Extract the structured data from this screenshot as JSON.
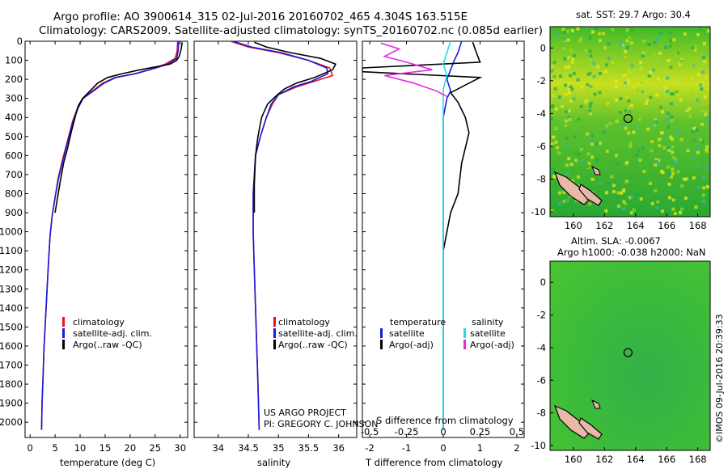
{
  "header": {
    "title_line1": "Argo profile: AO 3900614_315 02-Jul-2016 20160702_465 4.304S 163.515E",
    "title_line2": "Climatology: CARS2009. Satellite-adjusted climatology: synTS_20160702.nc (0.085d earlier)"
  },
  "colors": {
    "climatology": "#e8141e",
    "satellite": "#1a1adc",
    "argo": "#000000",
    "satellite_salinity": "#19e1e6",
    "argo_salinity": "#e628e6",
    "land": "#e8b8a8"
  },
  "depth_ticks": [
    0,
    100,
    200,
    300,
    400,
    500,
    600,
    700,
    800,
    900,
    1000,
    1100,
    1200,
    1300,
    1400,
    1500,
    1600,
    1700,
    1800,
    1900,
    2000
  ],
  "chart_data": [
    {
      "type": "line",
      "id": "temperature",
      "xlabel": "temperature (deg C)",
      "xlim": [
        -1,
        31.5
      ],
      "ylim": [
        2080,
        0
      ],
      "xticks": [
        0,
        5,
        10,
        15,
        20,
        25,
        30
      ],
      "legend": [
        "climatology",
        "satellite-adj. clim.",
        "Argo(..raw -QC)"
      ],
      "series": [
        {
          "name": "climatology",
          "color": "red",
          "points": [
            [
              29.5,
              0
            ],
            [
              29.4,
              50
            ],
            [
              29,
              90
            ],
            [
              27,
              120
            ],
            [
              25,
              140
            ],
            [
              21,
              170
            ],
            [
              17,
              190
            ],
            [
              14.5,
              220
            ],
            [
              12.5,
              260
            ],
            [
              10.5,
              300
            ],
            [
              9.5,
              350
            ],
            [
              8.5,
              420
            ],
            [
              7.5,
              520
            ],
            [
              6.5,
              620
            ],
            [
              5.6,
              720
            ],
            [
              5,
              820
            ],
            [
              4.4,
              920
            ],
            [
              4,
              1020
            ],
            [
              3.7,
              1150
            ],
            [
              3.4,
              1300
            ],
            [
              3.1,
              1450
            ],
            [
              2.8,
              1600
            ],
            [
              2.6,
              1750
            ],
            [
              2.4,
              1900
            ],
            [
              2.3,
              2040
            ]
          ]
        },
        {
          "name": "satellite-adj. clim.",
          "color": "blue",
          "points": [
            [
              29.7,
              0
            ],
            [
              29.6,
              50
            ],
            [
              29.3,
              90
            ],
            [
              27.5,
              120
            ],
            [
              25.2,
              140
            ],
            [
              21.2,
              170
            ],
            [
              17.2,
              190
            ],
            [
              14.8,
              220
            ],
            [
              12.7,
              260
            ],
            [
              10.6,
              300
            ],
            [
              9.6,
              350
            ],
            [
              8.6,
              420
            ],
            [
              7.6,
              520
            ],
            [
              6.6,
              620
            ],
            [
              5.7,
              720
            ],
            [
              5,
              820
            ],
            [
              4.4,
              920
            ],
            [
              4,
              1020
            ],
            [
              3.7,
              1150
            ],
            [
              3.4,
              1300
            ],
            [
              3.1,
              1450
            ],
            [
              2.8,
              1600
            ],
            [
              2.6,
              1750
            ],
            [
              2.4,
              1900
            ],
            [
              2.3,
              2040
            ]
          ]
        },
        {
          "name": "Argo(..raw -QC)",
          "color": "black",
          "points": [
            [
              30.4,
              5
            ],
            [
              30.2,
              40
            ],
            [
              29.8,
              80
            ],
            [
              29.3,
              100
            ],
            [
              28,
              120
            ],
            [
              26,
              130
            ],
            [
              22,
              150
            ],
            [
              18.5,
              170
            ],
            [
              15.5,
              190
            ],
            [
              13.5,
              220
            ],
            [
              12,
              260
            ],
            [
              10.5,
              300
            ],
            [
              9.6,
              340
            ],
            [
              9,
              400
            ],
            [
              8.2,
              480
            ],
            [
              7.5,
              560
            ],
            [
              6.7,
              640
            ],
            [
              6,
              740
            ],
            [
              5.5,
              820
            ],
            [
              5,
              900
            ]
          ]
        }
      ]
    },
    {
      "type": "line",
      "id": "salinity",
      "xlabel": "salinity",
      "xlim": [
        33.6,
        36.3
      ],
      "ylim": [
        2080,
        0
      ],
      "xticks": [
        34,
        34.5,
        35,
        35.5,
        36
      ],
      "legend": [
        "climatology",
        "satellite-adj. clim.",
        "Argo(..raw -QC)"
      ],
      "series": [
        {
          "name": "climatology",
          "color": "red",
          "points": [
            [
              34.2,
              0
            ],
            [
              34.5,
              30
            ],
            [
              35,
              60
            ],
            [
              35.5,
              100
            ],
            [
              35.85,
              140
            ],
            [
              35.9,
              180
            ],
            [
              35.6,
              210
            ],
            [
              35.3,
              240
            ],
            [
              35,
              280
            ],
            [
              34.9,
              330
            ],
            [
              34.8,
              400
            ],
            [
              34.7,
              500
            ],
            [
              34.62,
              600
            ],
            [
              34.58,
              800
            ],
            [
              34.58,
              1000
            ],
            [
              34.6,
              1200
            ],
            [
              34.62,
              1400
            ],
            [
              34.64,
              1600
            ],
            [
              34.66,
              1800
            ],
            [
              34.68,
              2040
            ]
          ]
        },
        {
          "name": "satellite-adj. clim.",
          "color": "blue",
          "points": [
            [
              34.25,
              0
            ],
            [
              34.55,
              30
            ],
            [
              35.05,
              60
            ],
            [
              35.5,
              100
            ],
            [
              35.8,
              140
            ],
            [
              35.82,
              170
            ],
            [
              35.55,
              210
            ],
            [
              35.25,
              240
            ],
            [
              35,
              280
            ],
            [
              34.88,
              330
            ],
            [
              34.8,
              400
            ],
            [
              34.7,
              500
            ],
            [
              34.62,
              600
            ],
            [
              34.58,
              800
            ],
            [
              34.58,
              1000
            ],
            [
              34.6,
              1200
            ],
            [
              34.62,
              1400
            ],
            [
              34.64,
              1600
            ],
            [
              34.66,
              1800
            ],
            [
              34.68,
              2040
            ]
          ]
        },
        {
          "name": "Argo(..raw -QC)",
          "color": "black",
          "points": [
            [
              34.6,
              5
            ],
            [
              34.8,
              30
            ],
            [
              35.2,
              60
            ],
            [
              35.7,
              90
            ],
            [
              35.95,
              120
            ],
            [
              35.9,
              150
            ],
            [
              35.6,
              190
            ],
            [
              35.3,
              220
            ],
            [
              35.1,
              250
            ],
            [
              34.95,
              290
            ],
            [
              34.82,
              330
            ],
            [
              34.72,
              400
            ],
            [
              34.66,
              500
            ],
            [
              34.62,
              600
            ],
            [
              34.6,
              750
            ],
            [
              34.6,
              900
            ]
          ]
        }
      ]
    },
    {
      "type": "line",
      "id": "difference",
      "xlabel": "T difference from climatology",
      "xlabel_top": "S difference from climatology",
      "xlim": [
        -2.2,
        2.2
      ],
      "ylim": [
        2080,
        0
      ],
      "xticks": [
        -2,
        -1,
        0,
        1,
        2
      ],
      "xtick_labels_top": [
        "-0.5",
        "-0.25",
        "0",
        "0.25",
        "0.5"
      ],
      "legend_left": {
        "title": "temperature",
        "items": [
          "satellite",
          "Argo(-adj)"
        ]
      },
      "legend_right": {
        "title": "salinity",
        "items": [
          "satellite",
          "Argo(-adj)"
        ]
      },
      "series": [
        {
          "name": "temperature satellite",
          "color": "blue",
          "points": [
            [
              0.5,
              0
            ],
            [
              0.4,
              60
            ],
            [
              0.3,
              100
            ],
            [
              0.2,
              150
            ],
            [
              0.1,
              200
            ],
            [
              0.2,
              260
            ],
            [
              0.1,
              300
            ],
            [
              0,
              400
            ],
            [
              0,
              600
            ],
            [
              0,
              900
            ],
            [
              0,
              1200
            ],
            [
              0,
              1500
            ],
            [
              0,
              1800
            ],
            [
              0,
              2040
            ]
          ]
        },
        {
          "name": "temperature Argo(-adj)",
          "color": "black",
          "points": [
            [
              0.8,
              5
            ],
            [
              0.9,
              60
            ],
            [
              1.0,
              110
            ],
            [
              -2.2,
              140
            ],
            [
              -2.2,
              160
            ],
            [
              1.0,
              190
            ],
            [
              0.6,
              230
            ],
            [
              0.2,
              270
            ],
            [
              0.4,
              320
            ],
            [
              0.6,
              400
            ],
            [
              0.7,
              480
            ],
            [
              0.6,
              560
            ],
            [
              0.5,
              640
            ],
            [
              0.45,
              720
            ],
            [
              0.4,
              800
            ],
            [
              0.2,
              900
            ],
            [
              0.1,
              1000
            ],
            [
              0,
              1100
            ]
          ]
        },
        {
          "name": "salinity satellite",
          "color": "cyan",
          "points": [
            [
              0.2,
              0
            ],
            [
              0.1,
              60
            ],
            [
              0,
              120
            ],
            [
              0.1,
              180
            ],
            [
              0,
              250
            ],
            [
              0,
              400
            ],
            [
              0,
              700
            ],
            [
              0,
              1000
            ],
            [
              0,
              1400
            ],
            [
              0,
              1800
            ],
            [
              0,
              2040
            ]
          ]
        },
        {
          "name": "salinity Argo(-adj)",
          "color": "magenta",
          "points": [
            [
              -1.7,
              10
            ],
            [
              -1.2,
              40
            ],
            [
              -1.6,
              80
            ],
            [
              -1.0,
              110
            ],
            [
              -0.3,
              150
            ],
            [
              -1.6,
              180
            ],
            [
              -0.8,
              220
            ],
            [
              -0.2,
              260
            ],
            [
              0.1,
              290
            ]
          ]
        }
      ]
    },
    {
      "type": "heatmap",
      "id": "sst_map",
      "title": "sat. SST: 29.7  Argo: 30.4",
      "xticks": [
        160,
        162,
        164,
        166,
        168
      ],
      "yticks": [
        0,
        -2,
        -4,
        -6,
        -8,
        -10
      ],
      "xlim": [
        158.5,
        168.8
      ],
      "ylim": [
        -10.3,
        1.3
      ],
      "argo_lon": 163.515,
      "argo_lat": -4.304
    },
    {
      "type": "heatmap",
      "id": "sla_map",
      "title_line1": "Altim. SLA: -0.0067",
      "title_line2": "Argo h1000: -0.038 h2000: NaN",
      "xticks": [
        160,
        162,
        164,
        166,
        168
      ],
      "yticks": [
        0,
        -2,
        -4,
        -6,
        -8,
        -10
      ],
      "xlim": [
        158.5,
        168.8
      ],
      "ylim": [
        -10.3,
        1.3
      ],
      "argo_lon": 163.515,
      "argo_lat": -4.304
    }
  ],
  "credit": {
    "project_line1": "US ARGO PROJECT",
    "project_line2": "PI: GREGORY C. JOHNSON",
    "imos_stamp": "©IMOS 09-Jul-2016 20:39:33"
  }
}
